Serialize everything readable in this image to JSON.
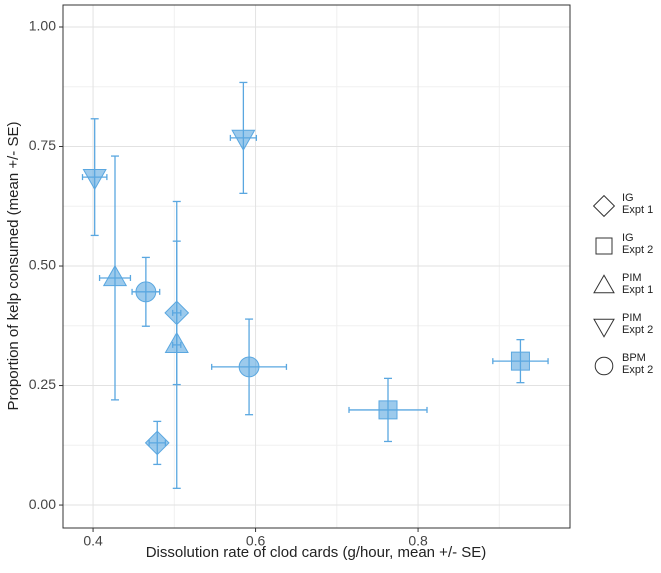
{
  "chart_data": {
    "type": "scatter",
    "xlabel": "Dissolution rate of clod cards (g/hour, mean +/- SE)",
    "ylabel": "Proportion of kelp consumed (mean +/- SE)",
    "xlim": [
      0.363,
      0.987
    ],
    "ylim": [
      -0.048,
      1.046
    ],
    "xticks": [
      0.4,
      0.6,
      0.8
    ],
    "yticks": [
      {
        "value": 0,
        "label": "0.00"
      },
      {
        "value": 0.25,
        "label": "0.25"
      },
      {
        "value": 0.5,
        "label": "0.50"
      },
      {
        "value": 0.75,
        "label": "0.75"
      },
      {
        "value": 1,
        "label": "1.00"
      }
    ],
    "grid": true,
    "color": "#5aa7e0",
    "series": [
      {
        "name": "IG\nExpt 1",
        "shape": "diamond",
        "x": [
          0.479,
          0.503
        ],
        "y": [
          0.13,
          0.402
        ],
        "xerr": [
          0.01,
          0.005
        ],
        "yerr": [
          0.045,
          0.15
        ]
      },
      {
        "name": "IG\nExpt 2",
        "shape": "square",
        "x": [
          0.763,
          0.926
        ],
        "y": [
          0.199,
          0.301
        ],
        "xerr": [
          0.048,
          0.034
        ],
        "yerr": [
          0.066,
          0.045
        ]
      },
      {
        "name": "PIM\nExpt 1",
        "shape": "triangle-up",
        "x": [
          0.427,
          0.503
        ],
        "y": [
          0.475,
          0.335
        ],
        "xerr": [
          0.019,
          0.005
        ],
        "yerr": [
          0.255,
          0.3
        ]
      },
      {
        "name": "PIM\nExpt 2",
        "shape": "triangle-down",
        "x": [
          0.402,
          0.585
        ],
        "y": [
          0.686,
          0.768
        ],
        "xerr": [
          0.015,
          0.016
        ],
        "yerr": [
          0.122,
          0.116
        ]
      },
      {
        "name": "BPM\nExpt 2",
        "shape": "circle",
        "x": [
          0.465,
          0.592
        ],
        "y": [
          0.446,
          0.289
        ],
        "xerr": [
          0.017,
          0.046
        ],
        "yerr": [
          0.072,
          0.1
        ]
      }
    ]
  }
}
